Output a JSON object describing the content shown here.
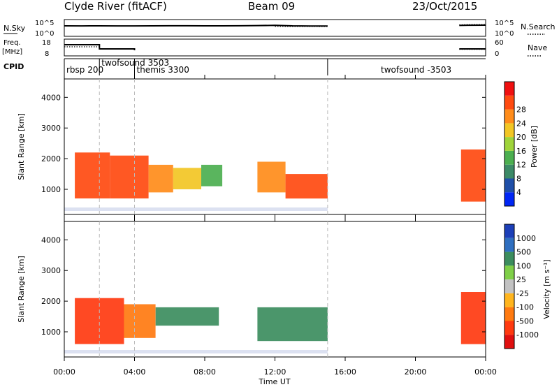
{
  "header": {
    "station": "Clyde River (fitACF)",
    "beam": "Beam 09",
    "date": "23/Oct/2015"
  },
  "side_labels": {
    "nsky": "N.Sky",
    "freq_top": "Freq.",
    "freq_units": "[MHz]",
    "cpid": "CPID",
    "nsearch": "N.Search",
    "nave": "Nave"
  },
  "nsky_panel": {
    "left_ticks": [
      "10^5",
      "10^0"
    ],
    "right_ticks": [
      "10^5",
      "10^0"
    ]
  },
  "freq_panel": {
    "left_ticks": [
      "18",
      "8"
    ],
    "right_ticks": [
      "60",
      "0"
    ]
  },
  "cpid_panel": {
    "modes": [
      {
        "label": "rbsp 200",
        "start_hour": 0.0
      },
      {
        "label": "twofsound 3503",
        "start_hour": 2.0
      },
      {
        "label": "themis 3300",
        "start_hour": 4.0
      },
      {
        "label": "twofsound -3503",
        "start_hour": 15.0
      }
    ]
  },
  "colors": {
    "power_scale": [
      "#0026f5",
      "#1f4fa8",
      "#3c8a67",
      "#4caf50",
      "#9fd43a",
      "#f2c624",
      "#ff8c1a",
      "#ff4a10",
      "#f01010"
    ],
    "velocity_scale": [
      "#1c3fb8",
      "#2f6fc0",
      "#3c8d5e",
      "#7fcf48",
      "#c2c2c2",
      "#ffb51e",
      "#ff7a10",
      "#ff3a10",
      "#e01010"
    ]
  },
  "chart_data": [
    {
      "type": "line",
      "panel": "noise_sky",
      "x_unit": "hours UT",
      "xlim": [
        0,
        24
      ],
      "y_scale": "log",
      "ylim": [
        1,
        100000
      ],
      "series": [
        {
          "name": "N.Sky",
          "x": [
            0.0,
            1.0,
            2.0,
            3.0,
            4.0,
            5.0,
            6.0,
            7.0,
            8.0,
            9.0,
            10.0,
            11.0,
            12.0,
            12.5,
            13.0,
            14.0,
            15.0,
            22.5,
            23.0,
            24.0
          ],
          "y": [
            1800,
            1700,
            1750,
            1650,
            1700,
            1800,
            1900,
            1850,
            1800,
            1750,
            1900,
            2200,
            2600,
            2300,
            1800,
            1600,
            1500,
            2500,
            3000,
            3200
          ]
        },
        {
          "name": "N.Search",
          "x": [
            0.0,
            4.0,
            8.0,
            12.0,
            15.0,
            22.5,
            23.0,
            24.0
          ],
          "y": [
            900,
            1000,
            1000,
            1100,
            1000,
            4000,
            5000,
            5500
          ]
        }
      ]
    },
    {
      "type": "line",
      "panel": "frequency_nave",
      "x_unit": "hours UT",
      "xlim": [
        0,
        24
      ],
      "ylim": [
        8,
        18
      ],
      "y2lim": [
        0,
        60
      ],
      "series": [
        {
          "name": "Freq.",
          "x": [
            0.0,
            2.0,
            2.0,
            4.0,
            4.0,
            15.0,
            22.5,
            24.0
          ],
          "y": [
            15,
            15,
            12,
            12,
            11,
            11,
            12,
            12
          ]
        },
        {
          "name": "Nave",
          "x": [
            0.0,
            2.0,
            2.0,
            4.0,
            4.0,
            15.0,
            22.5,
            24.0
          ],
          "y2": [
            33,
            33,
            25,
            25,
            20,
            20,
            22,
            22
          ]
        }
      ]
    },
    {
      "type": "heatmap",
      "panel": "power",
      "xlabel": "",
      "ylabel": "Slant Range [km]",
      "xlim": [
        0,
        24
      ],
      "ylim": [
        180,
        4600
      ],
      "yticks": [
        1000,
        2000,
        3000,
        4000
      ],
      "colorbar": {
        "label": "Power [dB]",
        "range": [
          0,
          32
        ],
        "ticks": [
          "4",
          "8",
          "12",
          "16",
          "20",
          "24",
          "28"
        ]
      },
      "cells": [
        {
          "t0": 0.6,
          "t1": 2.6,
          "r0": 700,
          "r1": 2200,
          "v": 28
        },
        {
          "t0": 2.6,
          "t1": 4.8,
          "r0": 700,
          "r1": 2100,
          "v": 25
        },
        {
          "t0": 4.8,
          "t1": 6.2,
          "r0": 900,
          "r1": 1800,
          "v": 22
        },
        {
          "t0": 6.2,
          "t1": 7.8,
          "r0": 1000,
          "r1": 1700,
          "v": 18
        },
        {
          "t0": 7.8,
          "t1": 9.0,
          "r0": 1100,
          "r1": 1800,
          "v": 13
        },
        {
          "t0": 11.0,
          "t1": 12.6,
          "r0": 900,
          "r1": 1900,
          "v": 23
        },
        {
          "t0": 12.6,
          "t1": 15.0,
          "r0": 700,
          "r1": 1500,
          "v": 27
        },
        {
          "t0": 22.6,
          "t1": 24.0,
          "r0": 600,
          "r1": 2300,
          "v": 26
        }
      ]
    },
    {
      "type": "heatmap",
      "panel": "velocity",
      "xlabel": "Time UT",
      "ylabel": "Slant Range [km]",
      "xlim": [
        0,
        24
      ],
      "ylim": [
        180,
        4600
      ],
      "xticks": [
        "00:00",
        "04:00",
        "08:00",
        "12:00",
        "16:00",
        "20:00",
        "00:00"
      ],
      "yticks": [
        1000,
        2000,
        3000,
        4000
      ],
      "colorbar": {
        "label": "Velocity [m s⁻¹]",
        "ticks": [
          "1000",
          "500",
          "100",
          "25",
          "-25",
          "-100",
          "-500",
          "-1000"
        ]
      },
      "cells": [
        {
          "t0": 0.6,
          "t1": 3.4,
          "r0": 600,
          "r1": 2100,
          "v": -800
        },
        {
          "t0": 3.4,
          "t1": 5.2,
          "r0": 800,
          "r1": 1900,
          "v": -200
        },
        {
          "t0": 5.2,
          "t1": 8.8,
          "r0": 1200,
          "r1": 1800,
          "v": 200
        },
        {
          "t0": 11.0,
          "t1": 15.0,
          "r0": 700,
          "r1": 1800,
          "v": 300
        },
        {
          "t0": 22.6,
          "t1": 24.0,
          "r0": 600,
          "r1": 2300,
          "v": -700
        }
      ]
    }
  ]
}
